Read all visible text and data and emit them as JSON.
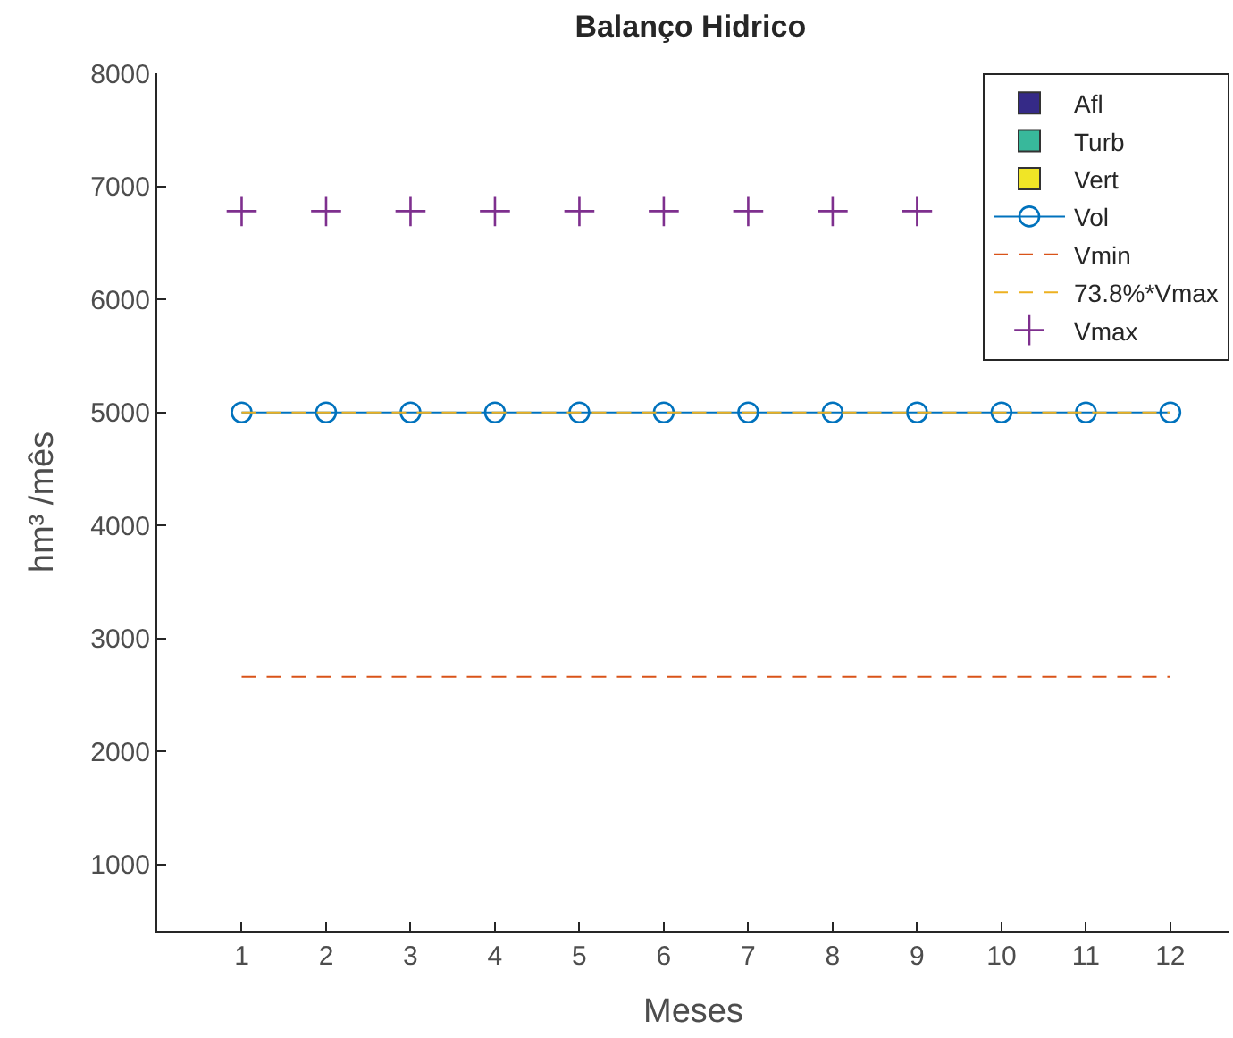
{
  "chart_data": {
    "type": "line",
    "title": "Balanço Hidrico",
    "xlabel": "Meses",
    "ylabel": "hm³ /mês",
    "x": [
      1,
      2,
      3,
      4,
      5,
      6,
      7,
      8,
      9,
      10,
      11,
      12
    ],
    "xlim": [
      0,
      12.7
    ],
    "xticks": [
      1,
      2,
      3,
      4,
      5,
      6,
      7,
      8,
      9,
      10,
      11,
      12
    ],
    "ylim": [
      415,
      8000
    ],
    "yticks": [
      1000,
      2000,
      3000,
      4000,
      5000,
      6000,
      7000,
      8000
    ],
    "legend": "top right",
    "series": [
      {
        "name": "Afl",
        "type": "bar",
        "color": "#352a87",
        "values": [
          null,
          null,
          null,
          null,
          null,
          null,
          null,
          null,
          null,
          null,
          null,
          null
        ]
      },
      {
        "name": "Turb",
        "type": "bar",
        "color": "#38b89b",
        "values": [
          null,
          null,
          null,
          null,
          null,
          null,
          null,
          null,
          null,
          null,
          null,
          null
        ]
      },
      {
        "name": "Vert",
        "type": "bar",
        "color": "#f0e526",
        "values": [
          null,
          null,
          null,
          null,
          null,
          null,
          null,
          null,
          null,
          null,
          null,
          null
        ]
      },
      {
        "name": "Vol",
        "color": "#0072bd",
        "marker": "circle",
        "line_style": "solid",
        "values": [
          5000,
          5000,
          5000,
          5000,
          5000,
          5000,
          5000,
          5000,
          5000,
          5000,
          5000,
          5000
        ]
      },
      {
        "name": "Vmin",
        "color": "#d95319",
        "marker": "none",
        "line_style": "dashed",
        "values": [
          2660,
          2660,
          2660,
          2660,
          2660,
          2660,
          2660,
          2660,
          2660,
          2660,
          2660,
          2660
        ]
      },
      {
        "name": "73.8%*Vmax",
        "color": "#edb120",
        "marker": "none",
        "line_style": "dashed",
        "values": [
          5000,
          5000,
          5000,
          5000,
          5000,
          5000,
          5000,
          5000,
          5000,
          5000,
          5000,
          5000
        ]
      },
      {
        "name": "Vmax",
        "type": "scatter",
        "color": "#7e2f8e",
        "marker": "cross",
        "values": [
          6780,
          6780,
          6780,
          6780,
          6780,
          6780,
          6780,
          6780,
          6780,
          null,
          null,
          null
        ]
      }
    ]
  }
}
